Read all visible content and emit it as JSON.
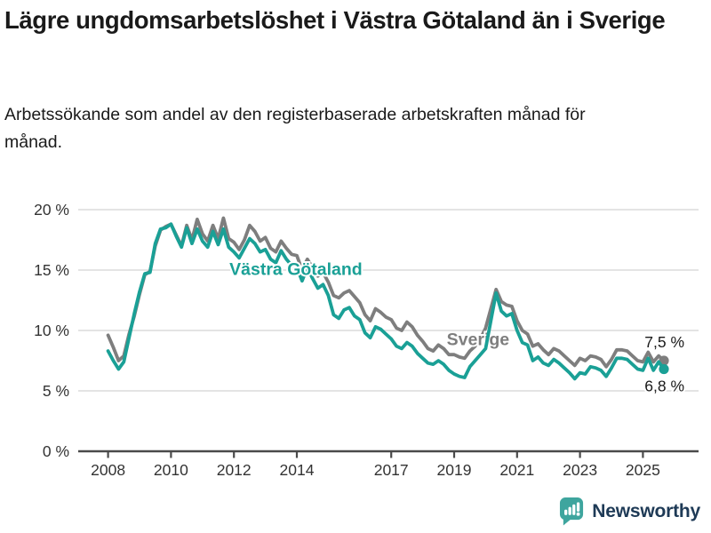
{
  "title": "Lägre ungdomsarbetslöshet i Västra Götaland än i Sverige",
  "subtitle": "Arbetssökande som andel av den registerbaserade arbetskraften månad för månad.",
  "footer": {
    "brand": "Newsworthy",
    "brand_color": "#1e3a56",
    "icon": "newsworthy-speech-bubble-bar-chart-icon",
    "icon_color": "#3ea59e"
  },
  "colors": {
    "vastra_gotaland": "#1aa096",
    "sverige": "#7e7e7e",
    "grid": "#dcdcdc",
    "axis": "#4a4a4a",
    "tick_text": "#333333",
    "value_text": "#1a1a1a",
    "background": "#ffffff"
  },
  "chart_data": {
    "type": "line",
    "unit": "%",
    "grid": true,
    "ylim": [
      0,
      20
    ],
    "xlim": [
      2008.0,
      2025.67
    ],
    "x_start_year": 2008,
    "x_step_months": 2,
    "y_ticks": [
      {
        "value": 0,
        "label": "0 %"
      },
      {
        "value": 5,
        "label": "5 %"
      },
      {
        "value": 10,
        "label": "10 %"
      },
      {
        "value": 15,
        "label": "15 %"
      },
      {
        "value": 20,
        "label": "20 %"
      }
    ],
    "x_ticks": [
      {
        "value": 2008,
        "label": "2008"
      },
      {
        "value": 2010,
        "label": "2010"
      },
      {
        "value": 2012,
        "label": "2012"
      },
      {
        "value": 2014,
        "label": "2014"
      },
      {
        "value": 2017,
        "label": "2017"
      },
      {
        "value": 2019,
        "label": "2019"
      },
      {
        "value": 2021,
        "label": "2021"
      },
      {
        "value": 2023,
        "label": "2023"
      },
      {
        "value": 2025,
        "label": "2025"
      }
    ],
    "series": [
      {
        "name": "Sverige",
        "color": "#7e7e7e",
        "end_label": "7,5 %",
        "end_value": 7.5,
        "label_x": 2019.76,
        "label_y": 8.8,
        "values": [
          9.6,
          8.6,
          7.5,
          7.9,
          9.7,
          11.2,
          13.0,
          14.6,
          14.9,
          17.0,
          18.3,
          18.6,
          18.8,
          17.9,
          17.0,
          18.7,
          17.5,
          19.2,
          18.0,
          17.4,
          18.7,
          17.6,
          19.3,
          17.6,
          17.3,
          16.7,
          17.5,
          18.7,
          18.2,
          17.4,
          17.7,
          16.8,
          16.5,
          17.4,
          16.8,
          16.3,
          16.2,
          15.0,
          15.9,
          15.2,
          14.5,
          14.8,
          14.0,
          12.9,
          12.7,
          13.1,
          13.3,
          12.8,
          12.3,
          11.3,
          10.8,
          11.8,
          11.5,
          11.1,
          10.9,
          10.2,
          10.0,
          10.7,
          10.3,
          9.6,
          9.1,
          8.5,
          8.3,
          8.8,
          8.5,
          8.0,
          8.0,
          7.8,
          7.7,
          8.3,
          8.7,
          9.3,
          10.2,
          11.8,
          13.4,
          12.4,
          12.1,
          12.0,
          10.8,
          10.0,
          9.7,
          8.7,
          8.9,
          8.4,
          8.0,
          8.5,
          8.3,
          7.9,
          7.5,
          7.1,
          7.7,
          7.5,
          7.9,
          7.8,
          7.6,
          7.0,
          7.6,
          8.4,
          8.4,
          8.3,
          7.9,
          7.5,
          7.4,
          8.2,
          7.4,
          7.9,
          7.5
        ]
      },
      {
        "name": "Västra Götaland",
        "color": "#1aa096",
        "end_label": "6,8 %",
        "end_value": 6.8,
        "label_x": 2013.97,
        "label_y": 14.6,
        "values": [
          8.3,
          7.5,
          6.8,
          7.4,
          9.4,
          11.4,
          13.2,
          14.7,
          14.8,
          17.2,
          18.4,
          18.5,
          18.8,
          17.8,
          16.9,
          18.5,
          17.2,
          18.4,
          17.4,
          16.9,
          18.2,
          17.1,
          18.4,
          16.9,
          16.5,
          16.0,
          16.8,
          17.6,
          17.2,
          16.5,
          16.7,
          15.9,
          15.6,
          16.6,
          15.9,
          15.4,
          15.2,
          14.1,
          15.2,
          14.3,
          13.5,
          13.8,
          12.9,
          11.3,
          11.0,
          11.7,
          11.9,
          11.2,
          10.9,
          9.8,
          9.4,
          10.3,
          10.1,
          9.7,
          9.3,
          8.7,
          8.5,
          9.0,
          8.7,
          8.1,
          7.7,
          7.3,
          7.2,
          7.5,
          7.2,
          6.7,
          6.4,
          6.2,
          6.1,
          7.0,
          7.5,
          8.0,
          8.5,
          10.8,
          13.1,
          11.6,
          11.2,
          11.4,
          10.0,
          9.0,
          8.8,
          7.5,
          7.8,
          7.3,
          7.1,
          7.6,
          7.3,
          6.9,
          6.5,
          6.0,
          6.5,
          6.4,
          7.0,
          6.9,
          6.7,
          6.2,
          6.9,
          7.7,
          7.7,
          7.6,
          7.2,
          6.8,
          6.7,
          7.7,
          6.7,
          7.4,
          6.8
        ]
      }
    ]
  }
}
